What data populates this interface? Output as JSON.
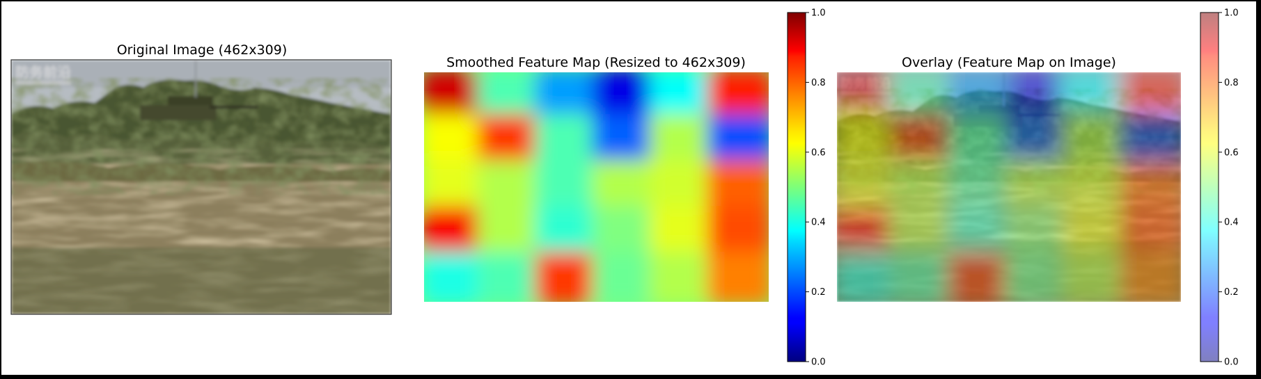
{
  "chart_data": [
    {
      "type": "image",
      "title": "Original Image (462x309)",
      "content": "photo of a camouflaged armored vehicle in tall grass",
      "watermark": "防务前沿",
      "palette": {
        "sky": "#b3b9bf",
        "treeline": "#4c5a32",
        "grass": "#8a7e5c",
        "ground": "#5c5f3c"
      }
    },
    {
      "type": "heatmap",
      "title": "Smoothed Feature Map (Resized to 462x309)",
      "colormap": "jet",
      "value_range": [
        0,
        1
      ],
      "grid_rows": 5,
      "grid_cols": 6,
      "values": [
        [
          0.92,
          0.45,
          0.28,
          0.1,
          0.38,
          0.85
        ],
        [
          0.62,
          0.82,
          0.45,
          0.22,
          0.55,
          0.2
        ],
        [
          0.6,
          0.55,
          0.45,
          0.55,
          0.58,
          0.78
        ],
        [
          0.88,
          0.55,
          0.42,
          0.5,
          0.6,
          0.8
        ],
        [
          0.4,
          0.45,
          0.82,
          0.48,
          0.55,
          0.75
        ]
      ],
      "colorbar": {
        "ticks": [
          "0.0",
          "0.2",
          "0.4",
          "0.6",
          "0.8",
          "1.0"
        ]
      }
    },
    {
      "type": "heatmap",
      "title": "Overlay (Feature Map on Image)",
      "colormap": "jet",
      "alpha": 0.5,
      "value_range": [
        0,
        1
      ],
      "colorbar": {
        "ticks": [
          "0.0",
          "0.2",
          "0.4",
          "0.6",
          "0.8",
          "1.0"
        ]
      }
    }
  ]
}
